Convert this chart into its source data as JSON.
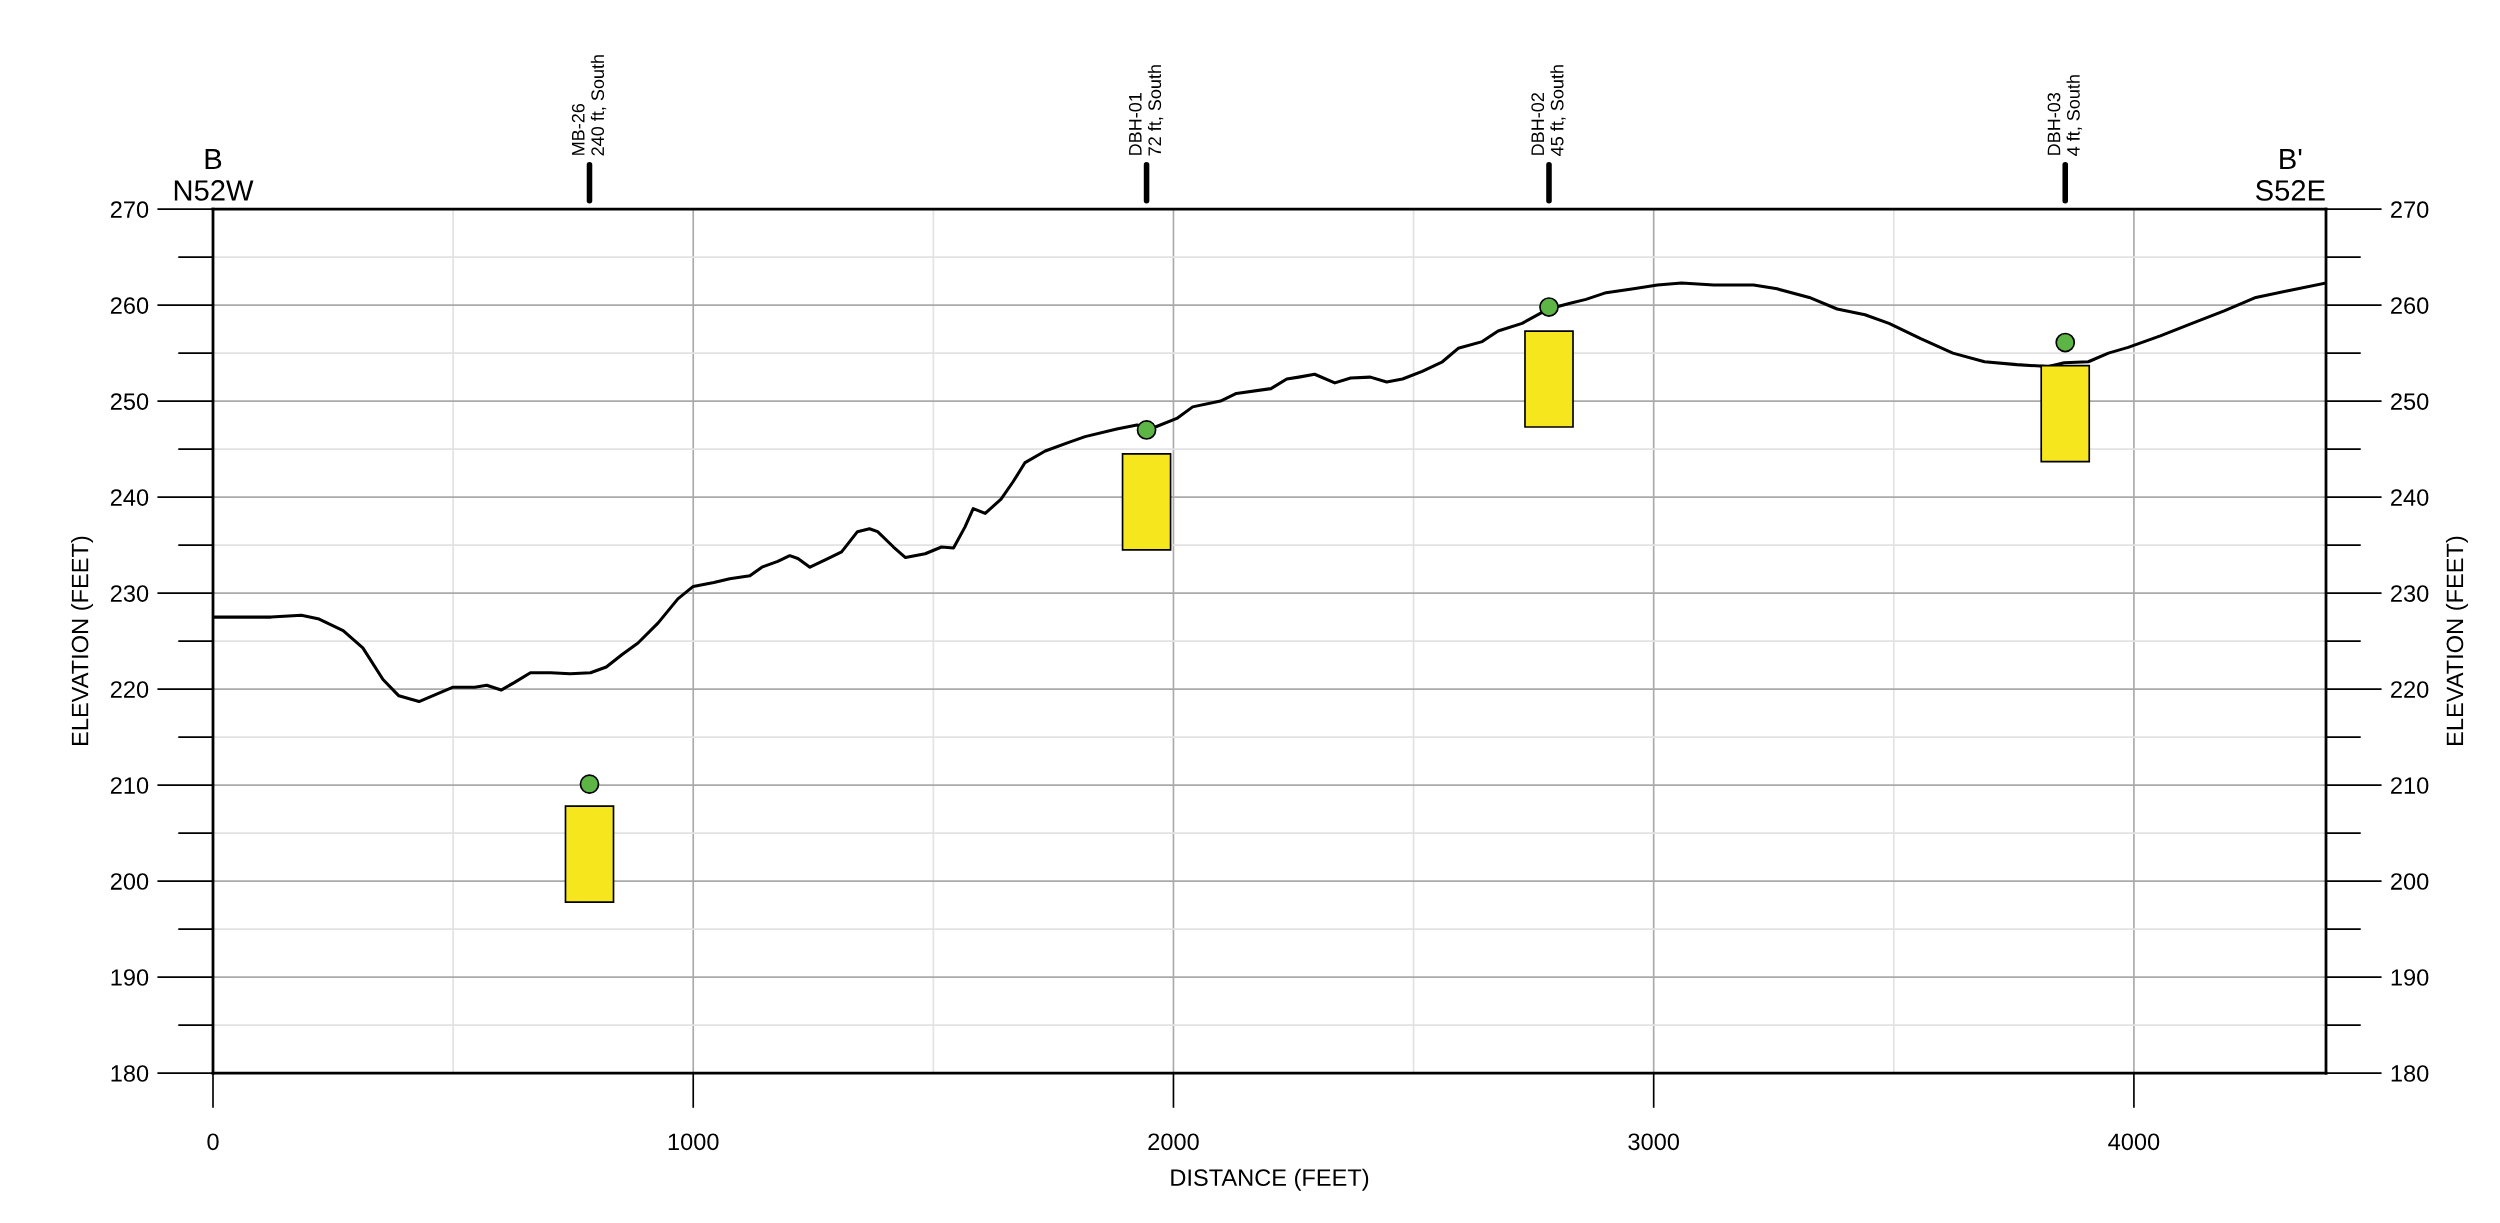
{
  "chart_data": {
    "type": "line",
    "xlabel": "DISTANCE (FEET)",
    "ylabel": "ELEVATION (FEET)",
    "y2label": "ELEVATION (FEET)",
    "annotations": [
      "B\nN52W",
      "B'\nS52E",
      "MB-26\n240 ft, South",
      "DBH-01\n72 ft, South",
      "DBH-02\n45 ft, South",
      "DBH-03\n4 ft, South"
    ],
    "xlim": [
      0,
      4400
    ],
    "xticks": [
      0,
      {
        "value": 500,
        "label": null
      },
      1000,
      {
        "value": 1500,
        "label": null
      },
      2000,
      {
        "value": 2500,
        "label": null
      },
      3000,
      {
        "value": 3500,
        "label": null
      },
      4000
    ],
    "ylim": [
      180,
      270
    ],
    "yticks": [
      180,
      {
        "value": 185,
        "label": null
      },
      190,
      {
        "value": 195,
        "label": null
      },
      200,
      {
        "value": 205,
        "label": null
      },
      210,
      {
        "value": 215,
        "label": null
      },
      220,
      {
        "value": 225,
        "label": null
      },
      230,
      {
        "value": 235,
        "label": null
      },
      240,
      {
        "value": 245,
        "label": null
      },
      250,
      {
        "value": 255,
        "label": null
      },
      260,
      {
        "value": 265,
        "label": null
      },
      270
    ],
    "y2lim": [
      180,
      270
    ],
    "y2ticks": [
      180,
      {
        "value": 185,
        "label": null
      },
      190,
      {
        "value": 195,
        "label": null
      },
      200,
      {
        "value": 205,
        "label": null
      },
      210,
      {
        "value": 215,
        "label": null
      },
      220,
      {
        "value": 225,
        "label": null
      },
      230,
      {
        "value": 235,
        "label": null
      },
      240,
      {
        "value": 245,
        "label": null
      },
      250,
      {
        "value": 255,
        "label": null
      },
      260,
      {
        "value": 265,
        "label": null
      },
      270
    ],
    "grid": true,
    "series": [
      {
        "color": "#000000",
        "line_style": "solid",
        "x": [
          0,
          55,
          121,
          184,
          221,
          271,
          312,
          354,
          387,
          429,
          462,
          500,
          545,
          570,
          600,
          628,
          661,
          703,
          744,
          786,
          819,
          852,
          885,
          927,
          968,
          1000,
          1043,
          1076,
          1118,
          1143,
          1176,
          1201,
          1218,
          1243,
          1276,
          1309,
          1342,
          1367,
          1384,
          1417,
          1442,
          1483,
          1517,
          1542,
          1566,
          1583,
          1608,
          1641,
          1666,
          1691,
          1733,
          1782,
          1816,
          1882,
          1924,
          1957,
          2007,
          2040,
          2098,
          2131,
          2203,
          2236,
          2261,
          2294,
          2336,
          2369,
          2410,
          2444,
          2477,
          2518,
          2560,
          2593,
          2643,
          2676,
          2726,
          2781,
          2826,
          2859,
          2901,
          2958,
          3008,
          3058,
          3125,
          3208,
          3257,
          3324,
          3382,
          3440,
          3490,
          3556,
          3623,
          3689,
          3756,
          3822,
          3855,
          3905,
          3947,
          3988,
          4055,
          4121,
          4188,
          4254,
          4321,
          4400
        ],
        "values": [
          227.5,
          227.5,
          227.5,
          227.7,
          227.3,
          226.1,
          224.3,
          221.0,
          219.3,
          218.7,
          219.4,
          220.2,
          220.2,
          220.4,
          219.9,
          220.7,
          221.7,
          221.7,
          221.6,
          221.7,
          222.3,
          223.6,
          224.8,
          226.9,
          229.4,
          230.7,
          231.1,
          231.5,
          231.8,
          232.7,
          233.3,
          233.9,
          233.6,
          232.7,
          233.5,
          234.3,
          236.4,
          236.7,
          236.4,
          234.8,
          233.7,
          234.1,
          234.8,
          234.7,
          236.9,
          238.8,
          238.3,
          239.8,
          241.6,
          243.6,
          244.8,
          245.7,
          246.3,
          247.1,
          247.5,
          247.2,
          248.2,
          249.4,
          250.0,
          250.8,
          251.3,
          252.3,
          252.5,
          252.8,
          251.9,
          252.4,
          252.5,
          252.0,
          252.3,
          253.1,
          254.1,
          255.5,
          256.2,
          257.3,
          258.1,
          259.6,
          260.2,
          260.6,
          261.3,
          261.7,
          262.1,
          262.3,
          262.1,
          262.1,
          261.7,
          260.8,
          259.6,
          259.0,
          258.1,
          256.5,
          255.0,
          254.1,
          253.8,
          253.6,
          254.0,
          254.1,
          255.0,
          255.6,
          256.8,
          258.1,
          259.4,
          260.8,
          261.5,
          262.3
        ]
      },
      {
        "type": "bar",
        "color": "#f5e61e",
        "x": [
          784,
          1944,
          2782,
          3857
        ],
        "base": [
          197.8,
          234.5,
          247.3,
          243.7
        ],
        "values": [
          10.0,
          10.0,
          10.0,
          10.0
        ]
      },
      {
        "type": "scatter",
        "color": "#5cb545",
        "marker": "circle",
        "x": [
          784,
          1944,
          2782,
          3857
        ],
        "values": [
          210.1,
          247.0,
          259.8,
          256.1
        ]
      }
    ]
  }
}
